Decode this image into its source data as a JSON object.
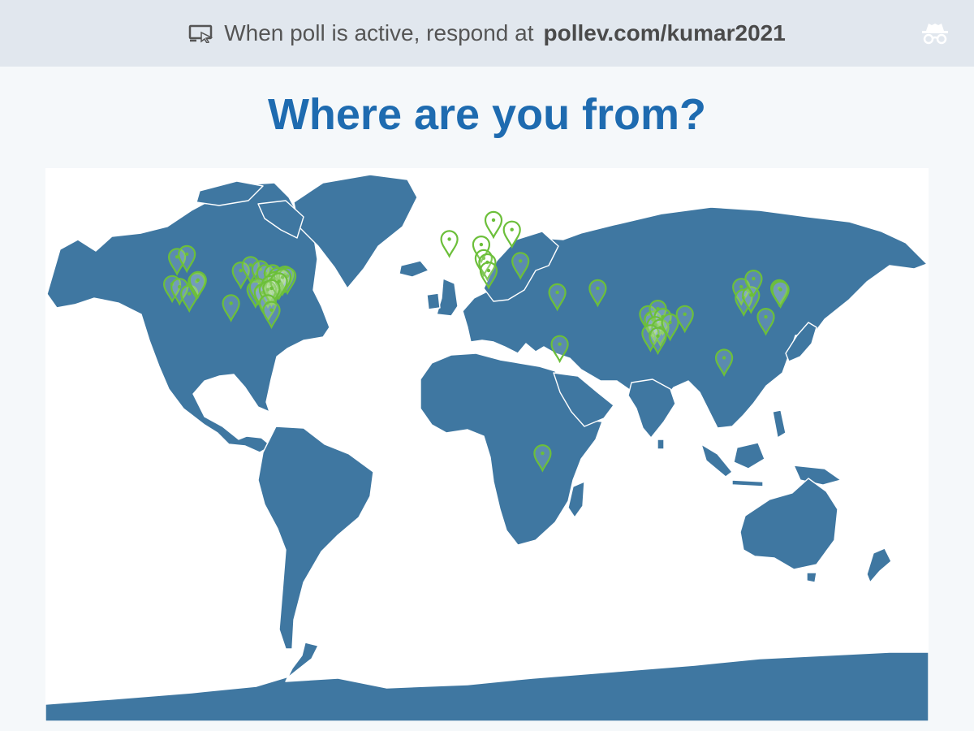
{
  "header": {
    "prefix": "When poll is active, respond at",
    "url": "pollev.com/kumar2021",
    "screen_icon": "screen-cursor-icon",
    "incognito_icon": "incognito-icon"
  },
  "poll": {
    "title": "Where are you from?"
  },
  "map": {
    "land_color": "#3f77a1",
    "pin_color": "#6cbf3a",
    "responses": [
      {
        "lat": 47,
        "lon": -119
      },
      {
        "lat": 48,
        "lon": -115
      },
      {
        "lat": 37,
        "lon": -121
      },
      {
        "lat": 36,
        "lon": -118
      },
      {
        "lat": 33.5,
        "lon": -114
      },
      {
        "lat": 38,
        "lon": -111
      },
      {
        "lat": 38.5,
        "lon": -110.5
      },
      {
        "lat": 30,
        "lon": -97
      },
      {
        "lat": 42,
        "lon": -93
      },
      {
        "lat": 44,
        "lon": -89
      },
      {
        "lat": 42.5,
        "lon": -85
      },
      {
        "lat": 41,
        "lon": -83
      },
      {
        "lat": 35,
        "lon": -87
      },
      {
        "lat": 36,
        "lon": -86
      },
      {
        "lat": 34,
        "lon": -84
      },
      {
        "lat": 38,
        "lon": -80
      },
      {
        "lat": 41,
        "lon": -80
      },
      {
        "lat": 40,
        "lon": -78
      },
      {
        "lat": 39,
        "lon": -77
      },
      {
        "lat": 38.5,
        "lon": -79
      },
      {
        "lat": 37,
        "lon": -81
      },
      {
        "lat": 36,
        "lon": -79.5
      },
      {
        "lat": 35,
        "lon": -82
      },
      {
        "lat": 40.5,
        "lon": -75
      },
      {
        "lat": 40,
        "lon": -74
      },
      {
        "lat": 39.5,
        "lon": -76
      },
      {
        "lat": 38,
        "lon": -77.5
      },
      {
        "lat": 35.5,
        "lon": -80.5
      },
      {
        "lat": 30,
        "lon": -82
      },
      {
        "lat": 27.5,
        "lon": -80.5
      },
      {
        "lat": 53.5,
        "lon": -8
      },
      {
        "lat": 60.5,
        "lon": 10
      },
      {
        "lat": 57,
        "lon": 17.5
      },
      {
        "lat": 51.5,
        "lon": 5
      },
      {
        "lat": 46.5,
        "lon": 6
      },
      {
        "lat": 45,
        "lon": 7.5
      },
      {
        "lat": 42,
        "lon": 8
      },
      {
        "lat": 45.5,
        "lon": 21
      },
      {
        "lat": 34,
        "lon": 36
      },
      {
        "lat": 35.5,
        "lon": 52.5
      },
      {
        "lat": 15,
        "lon": 37
      },
      {
        "lat": -25,
        "lon": 30
      },
      {
        "lat": 26,
        "lon": 73
      },
      {
        "lat": 24,
        "lon": 75
      },
      {
        "lat": 28,
        "lon": 77
      },
      {
        "lat": 25,
        "lon": 79
      },
      {
        "lat": 22,
        "lon": 76
      },
      {
        "lat": 21,
        "lon": 78
      },
      {
        "lat": 19,
        "lon": 74
      },
      {
        "lat": 18,
        "lon": 77
      },
      {
        "lat": 23,
        "lon": 82
      },
      {
        "lat": 26,
        "lon": 88
      },
      {
        "lat": 10,
        "lon": 104
      },
      {
        "lat": 36,
        "lon": 111
      },
      {
        "lat": 32,
        "lon": 112
      },
      {
        "lat": 33,
        "lon": 115
      },
      {
        "lat": 39,
        "lon": 116
      },
      {
        "lat": 35.5,
        "lon": 126.5
      },
      {
        "lat": 35,
        "lon": 127
      },
      {
        "lat": 25,
        "lon": 121
      }
    ]
  }
}
